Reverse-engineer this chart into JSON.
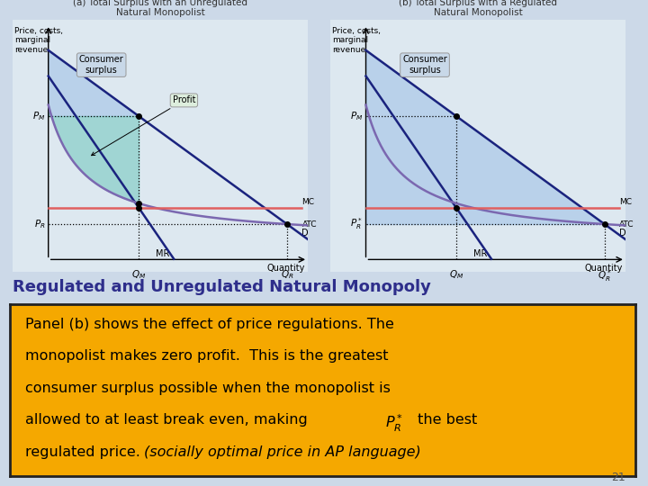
{
  "bg_color": "#ccd9e8",
  "title_a": "(a) Total Surplus with an Unregulated\nNatural Monopolist",
  "title_b": "(b) Total Surplus with a Regulated\nNatural Monopolist",
  "xlabel": "Quantity",
  "heading_text": "Regulated and Unregulated Natural Monopoly",
  "heading_color": "#2e2e8b",
  "box_bg": "#f5a800",
  "box_border": "#222222",
  "page_num": "21",
  "demand_color": "#1a237e",
  "mr_color": "#1a237e",
  "atc_color": "#7b68b0",
  "mc_color": "#e06060",
  "cs_color": "#aac8e8",
  "profit_color": "#80cbc4",
  "panel_bg": "#dde8f0"
}
